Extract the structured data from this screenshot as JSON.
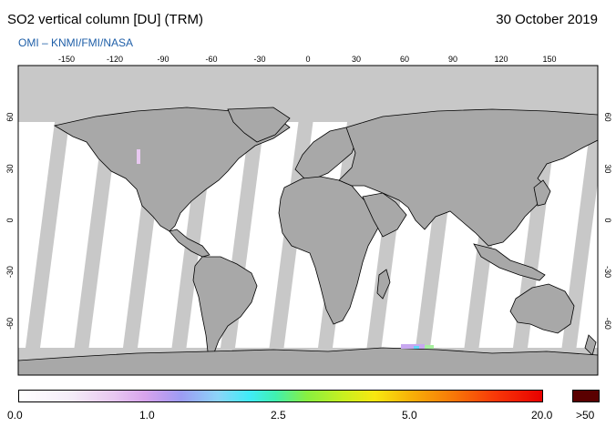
{
  "header": {
    "title": "SO2 vertical column [DU] (TRM)",
    "date": "30 October 2019",
    "subtitle": "OMI  –  KNMI/FMI/NASA"
  },
  "axes": {
    "lon_ticks": [
      "-150",
      "-120",
      "-90",
      "-60",
      "-30",
      "0",
      "30",
      "60",
      "90",
      "120",
      "150"
    ],
    "lat_ticks": [
      "60",
      "30",
      "0",
      "-30",
      "-60"
    ]
  },
  "colorbar": {
    "labels": [
      "0.0",
      "1.0",
      "2.5",
      "5.0",
      "20.0"
    ],
    "overflow_label": ">50",
    "colors": {
      "overflow": "#5a0000",
      "no_data": "#c8c8c8",
      "land_no_data": "#a0a0a0"
    }
  }
}
